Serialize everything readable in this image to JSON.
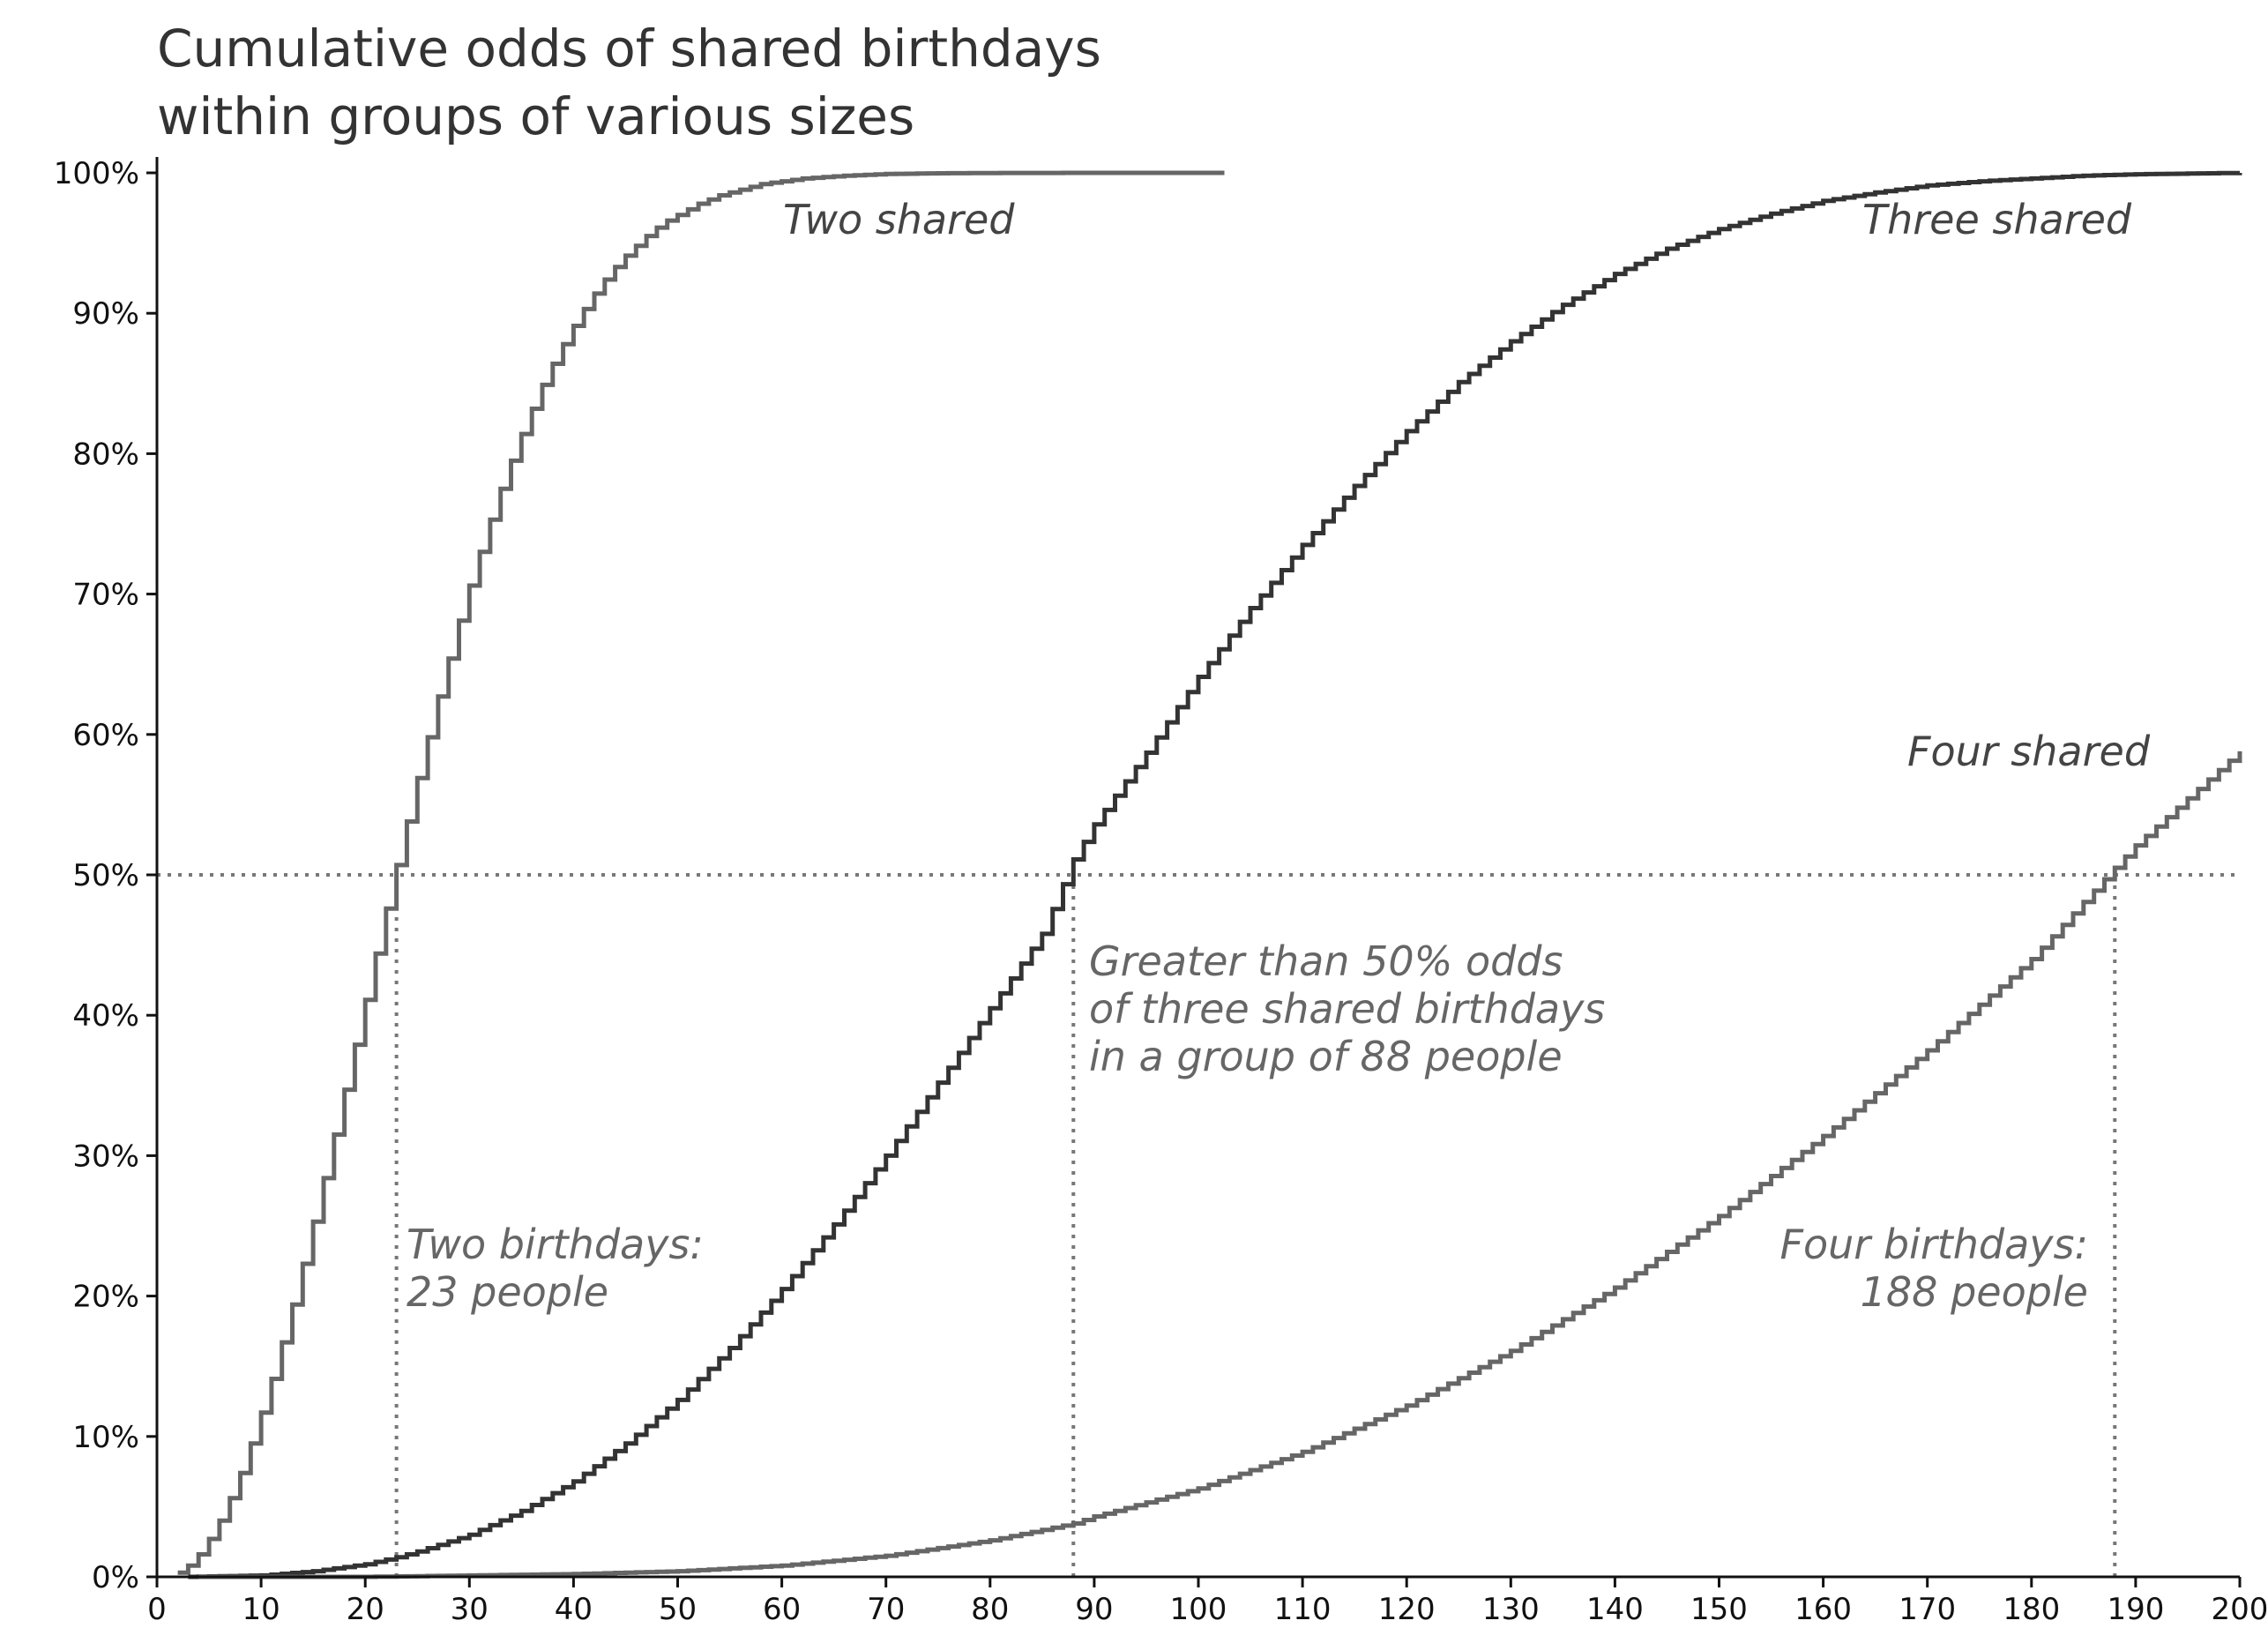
{
  "chart_data": {
    "type": "line",
    "title": "Cumulative odds of shared birthdays\nwithin groups of various sizes",
    "title_lines": [
      "Cumulative odds of shared birthdays",
      "within groups of various sizes"
    ],
    "xlabel": "",
    "ylabel": "",
    "xlim": [
      0,
      200
    ],
    "ylim": [
      0,
      1
    ],
    "xticks": [
      0,
      10,
      20,
      30,
      40,
      50,
      60,
      70,
      80,
      90,
      100,
      110,
      120,
      130,
      140,
      150,
      160,
      170,
      180,
      190,
      200
    ],
    "yticks": [
      0,
      0.1,
      0.2,
      0.3,
      0.4,
      0.5,
      0.6,
      0.7,
      0.8,
      0.9,
      1.0
    ],
    "ytick_labels": [
      "0%",
      "10%",
      "20%",
      "30%",
      "40%",
      "50%",
      "60%",
      "70%",
      "80%",
      "90%",
      "100%"
    ],
    "grid": false,
    "legend": "none",
    "step_style": "post",
    "series": [
      {
        "label": "Two shared",
        "color": "#666666",
        "x": [
          2,
          3,
          4,
          5,
          6,
          7,
          8,
          9,
          10,
          11,
          12,
          13,
          14,
          15,
          16,
          17,
          18,
          19,
          20,
          21,
          22,
          23,
          24,
          25,
          26,
          27,
          28,
          29,
          30,
          31,
          32,
          33,
          34,
          35,
          36,
          37,
          38,
          39,
          40,
          41,
          42,
          43,
          44,
          45,
          46,
          47,
          48,
          49,
          50,
          52,
          54,
          56,
          58,
          60,
          62,
          64,
          66,
          68,
          70,
          75,
          80,
          90,
          102
        ],
        "y": [
          0.003,
          0.008,
          0.016,
          0.027,
          0.04,
          0.056,
          0.074,
          0.095,
          0.117,
          0.141,
          0.167,
          0.194,
          0.223,
          0.253,
          0.284,
          0.315,
          0.347,
          0.379,
          0.411,
          0.444,
          0.476,
          0.507,
          0.538,
          0.569,
          0.598,
          0.627,
          0.654,
          0.681,
          0.706,
          0.73,
          0.753,
          0.775,
          0.795,
          0.814,
          0.832,
          0.849,
          0.864,
          0.878,
          0.891,
          0.903,
          0.914,
          0.924,
          0.933,
          0.941,
          0.948,
          0.955,
          0.961,
          0.966,
          0.97,
          0.978,
          0.984,
          0.988,
          0.992,
          0.994,
          0.996,
          0.997,
          0.998,
          0.9986,
          0.9992,
          0.9997,
          0.9999,
          1.0,
          1.0
        ]
      },
      {
        "label": "Three shared",
        "color": "#333333",
        "x": [
          3,
          10,
          15,
          20,
          23,
          25,
          30,
          35,
          40,
          45,
          50,
          55,
          60,
          65,
          70,
          75,
          80,
          85,
          88,
          90,
          95,
          100,
          105,
          110,
          115,
          120,
          125,
          130,
          135,
          140,
          145,
          150,
          155,
          160,
          165,
          170,
          175,
          180,
          185,
          190,
          195,
          200
        ],
        "y": [
          0.0,
          0.001,
          0.004,
          0.009,
          0.014,
          0.018,
          0.03,
          0.047,
          0.068,
          0.095,
          0.126,
          0.163,
          0.205,
          0.251,
          0.3,
          0.352,
          0.405,
          0.458,
          0.511,
          0.536,
          0.587,
          0.641,
          0.69,
          0.735,
          0.777,
          0.816,
          0.851,
          0.88,
          0.906,
          0.928,
          0.946,
          0.96,
          0.971,
          0.98,
          0.986,
          0.991,
          0.994,
          0.996,
          0.998,
          0.999,
          0.9995,
          1.0
        ]
      },
      {
        "label": "Four shared",
        "color": "#666666",
        "x": [
          4,
          20,
          30,
          40,
          50,
          60,
          70,
          80,
          88,
          90,
          100,
          110,
          120,
          130,
          140,
          150,
          160,
          170,
          180,
          188,
          190,
          200
        ],
        "y": [
          0.0,
          0.0,
          0.001,
          0.002,
          0.004,
          0.008,
          0.015,
          0.026,
          0.038,
          0.043,
          0.063,
          0.089,
          0.122,
          0.161,
          0.206,
          0.257,
          0.314,
          0.375,
          0.44,
          0.505,
          0.521,
          0.588
        ]
      }
    ],
    "series_labels": [
      "Two shared",
      "Three shared",
      "Four shared"
    ],
    "reference_lines": {
      "threshold_y": 0.5,
      "color": "#777777",
      "style": "dotted",
      "markers": [
        {
          "x": 23,
          "y_from": 0,
          "y_to": 0.5
        },
        {
          "x": 88,
          "y_from": 0,
          "y_to": 0.5
        },
        {
          "x": 188,
          "y_from": 0,
          "y_to": 0.5
        }
      ]
    },
    "annotations": [
      {
        "id": "two",
        "lines": [
          "Two birthdays:",
          "23 people"
        ],
        "color": "#666666",
        "style": "italic"
      },
      {
        "id": "three",
        "lines": [
          "Greater than 50% odds",
          "of three shared birthdays",
          "in a group of 88 people"
        ],
        "color": "#666666",
        "style": "italic"
      },
      {
        "id": "four",
        "lines": [
          "Four birthdays:",
          "188 people"
        ],
        "color": "#666666",
        "style": "italic"
      }
    ]
  }
}
